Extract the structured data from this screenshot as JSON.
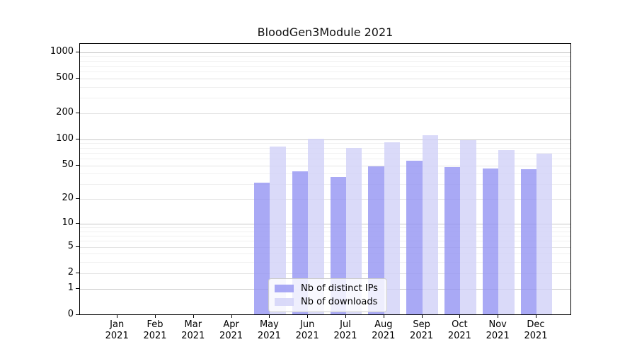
{
  "figure": {
    "title": "BloodGen3Module 2021",
    "background": "#ffffff"
  },
  "chart_data": {
    "type": "bar",
    "title": "BloodGen3Module 2021",
    "categories": [
      "Jan",
      "Feb",
      "Mar",
      "Apr",
      "May",
      "Jun",
      "Jul",
      "Aug",
      "Sep",
      "Oct",
      "Nov",
      "Dec"
    ],
    "year_label": "2021",
    "series": [
      {
        "name": "Nb of distinct IPs",
        "color": "rgba(148,148,242,0.8)",
        "color_hex_rendered": "#a9a9f3",
        "values": [
          0,
          0,
          0,
          0,
          31,
          42,
          36,
          48,
          56,
          47,
          45,
          44
        ]
      },
      {
        "name": "Nb of downloads",
        "color": "rgba(209,209,247,0.8)",
        "color_hex_rendered": "#dbdbf8",
        "values": [
          0,
          0,
          0,
          0,
          81,
          100,
          78,
          90,
          110,
          96,
          74,
          67
        ]
      }
    ],
    "xlabel": "",
    "ylabel": "",
    "y_scale": "log1p",
    "y_major_ticks": [
      0,
      1,
      2,
      5,
      10,
      20,
      50,
      100,
      200,
      500,
      1000
    ],
    "y_minor_ticks": [
      3,
      4,
      6,
      7,
      8,
      9,
      30,
      40,
      60,
      70,
      80,
      90,
      300,
      400,
      600,
      700,
      800,
      900
    ],
    "ylim": [
      0,
      1400
    ],
    "grid": "both",
    "grid_major_color": "#c6c6c6",
    "grid_mid_color": "#e3e3e3",
    "grid_minor_color": "#f0f0f0",
    "legend_position": "lower center",
    "legend_border_color": "#cccccc"
  }
}
